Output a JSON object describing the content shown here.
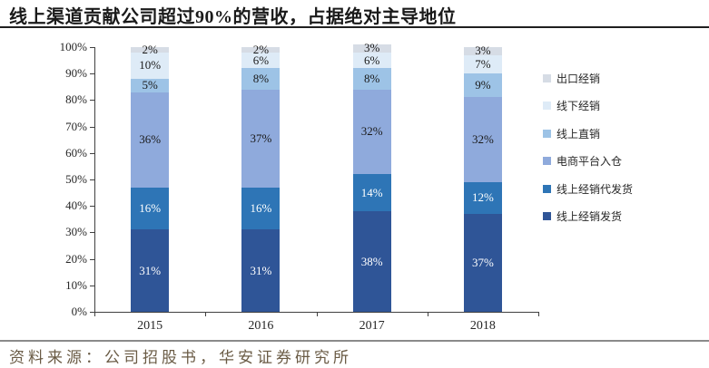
{
  "title": "线上渠道贡献公司超过90%的营收，占据绝对主导地位",
  "source": "资料来源：公司招股书，华安证券研究所",
  "colors": {
    "axis": "#404040",
    "title_rule": "#1f1f1f",
    "source_rule": "#8a8a8a",
    "source_text": "#6a5b45"
  },
  "chart_data": {
    "type": "bar",
    "stacked": true,
    "title": "线上渠道贡献公司超过90%的营收，占据绝对主导地位",
    "categories": [
      "2015",
      "2016",
      "2017",
      "2018"
    ],
    "series": [
      {
        "key": "online-dealer-shipping",
        "name": "线上经销发货",
        "color": "#2F5597",
        "label_color": "#FFFFFF",
        "values": [
          31,
          31,
          38,
          37
        ]
      },
      {
        "key": "online-dealer-dropship",
        "name": "线上经销代发货",
        "color": "#2E75B6",
        "label_color": "#FFFFFF",
        "values": [
          16,
          16,
          14,
          12
        ]
      },
      {
        "key": "ecommerce-platform-warehouse",
        "name": "电商平台入仓",
        "color": "#8FAADC",
        "label_color": "#1A1A1A",
        "values": [
          36,
          37,
          32,
          32
        ]
      },
      {
        "key": "online-direct-sales",
        "name": "线上直销",
        "color": "#9DC3E6",
        "label_color": "#1A1A1A",
        "values": [
          5,
          8,
          8,
          9
        ]
      },
      {
        "key": "offline-dealer",
        "name": "线下经销",
        "color": "#DEEBF7",
        "label_color": "#1A1A1A",
        "values": [
          10,
          6,
          6,
          7
        ]
      },
      {
        "key": "export-dealer",
        "name": "出口经销",
        "color": "#D6DCE5",
        "label_color": "#1A1A1A",
        "values": [
          2,
          2,
          3,
          3
        ]
      }
    ],
    "value_suffix": "%",
    "y_ticks": [
      "0%",
      "10%",
      "20%",
      "30%",
      "40%",
      "50%",
      "60%",
      "70%",
      "80%",
      "90%",
      "100%"
    ],
    "ylim": [
      0,
      100
    ],
    "grid": false,
    "legend_position": "right",
    "legend_order_top_to_bottom": [
      "出口经销",
      "线下经销",
      "线上直销",
      "电商平台入仓",
      "线上经销代发货",
      "线上经销发货"
    ]
  }
}
